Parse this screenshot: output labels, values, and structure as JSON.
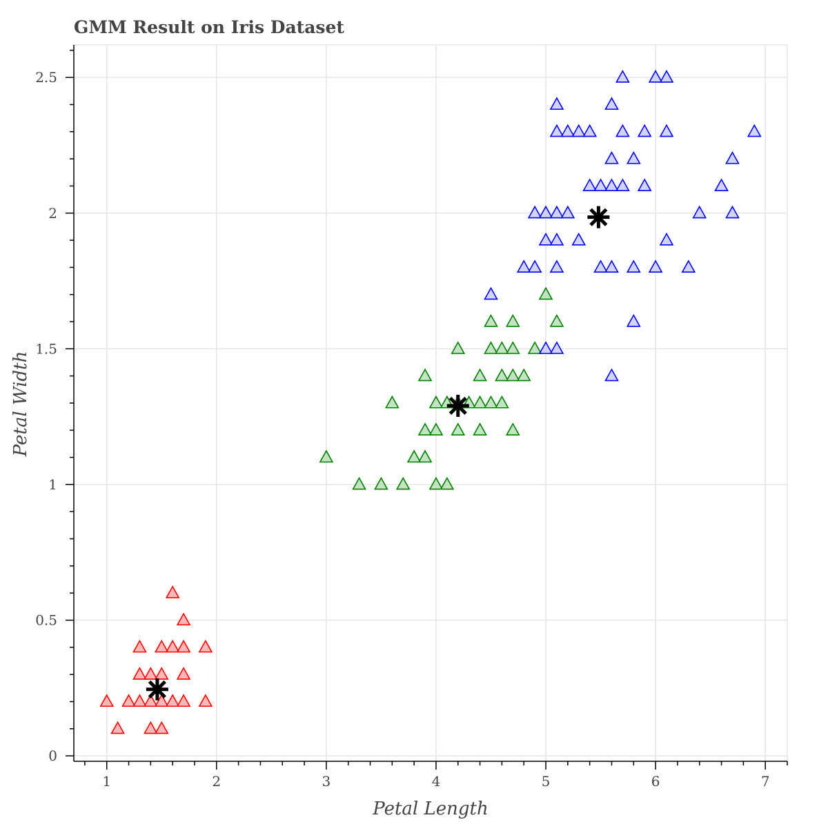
{
  "chart_data": {
    "type": "scatter",
    "title": "GMM Result on Iris Dataset",
    "xlabel": "Petal Length",
    "ylabel": "Petal Width",
    "xlim": [
      0.7,
      7.2
    ],
    "ylim": [
      -0.02,
      2.62
    ],
    "x_ticks": [
      1,
      2,
      3,
      4,
      5,
      6,
      7
    ],
    "y_ticks": [
      0,
      0.5,
      1,
      1.5,
      2,
      2.5
    ],
    "x_tick_labels": [
      "1",
      "2",
      "3",
      "4",
      "5",
      "6",
      "7"
    ],
    "y_tick_labels": [
      "0",
      "0.5",
      "1",
      "1.5",
      "2",
      "2.5"
    ],
    "grid": true,
    "series": [
      {
        "marker": "triangle",
        "color": "#ff0000",
        "fill": "#f4a6a6",
        "points": [
          [
            1.0,
            0.2
          ],
          [
            1.1,
            0.1
          ],
          [
            1.2,
            0.2
          ],
          [
            1.3,
            0.2
          ],
          [
            1.3,
            0.3
          ],
          [
            1.3,
            0.4
          ],
          [
            1.4,
            0.1
          ],
          [
            1.4,
            0.2
          ],
          [
            1.4,
            0.3
          ],
          [
            1.5,
            0.1
          ],
          [
            1.5,
            0.2
          ],
          [
            1.5,
            0.3
          ],
          [
            1.5,
            0.4
          ],
          [
            1.6,
            0.2
          ],
          [
            1.6,
            0.4
          ],
          [
            1.6,
            0.6
          ],
          [
            1.7,
            0.2
          ],
          [
            1.7,
            0.3
          ],
          [
            1.7,
            0.4
          ],
          [
            1.7,
            0.5
          ],
          [
            1.9,
            0.2
          ],
          [
            1.9,
            0.4
          ]
        ]
      },
      {
        "marker": "triangle",
        "color": "#008000",
        "fill": "#b8dcb8",
        "points": [
          [
            3.0,
            1.1
          ],
          [
            3.3,
            1.0
          ],
          [
            3.5,
            1.0
          ],
          [
            3.6,
            1.3
          ],
          [
            3.7,
            1.0
          ],
          [
            3.8,
            1.1
          ],
          [
            3.9,
            1.1
          ],
          [
            3.9,
            1.2
          ],
          [
            3.9,
            1.4
          ],
          [
            4.0,
            1.0
          ],
          [
            4.0,
            1.2
          ],
          [
            4.0,
            1.3
          ],
          [
            4.1,
            1.0
          ],
          [
            4.1,
            1.3
          ],
          [
            4.2,
            1.2
          ],
          [
            4.2,
            1.3
          ],
          [
            4.2,
            1.5
          ],
          [
            4.3,
            1.3
          ],
          [
            4.4,
            1.2
          ],
          [
            4.4,
            1.3
          ],
          [
            4.4,
            1.4
          ],
          [
            4.5,
            1.3
          ],
          [
            4.5,
            1.5
          ],
          [
            4.5,
            1.6
          ],
          [
            4.6,
            1.3
          ],
          [
            4.6,
            1.4
          ],
          [
            4.6,
            1.5
          ],
          [
            4.7,
            1.2
          ],
          [
            4.7,
            1.4
          ],
          [
            4.7,
            1.5
          ],
          [
            4.7,
            1.6
          ],
          [
            4.8,
            1.4
          ],
          [
            4.9,
            1.5
          ],
          [
            5.0,
            1.7
          ],
          [
            5.1,
            1.6
          ]
        ]
      },
      {
        "marker": "triangle",
        "color": "#0000ff",
        "fill": "#c8c8f0",
        "points": [
          [
            4.5,
            1.7
          ],
          [
            4.8,
            1.8
          ],
          [
            4.9,
            1.8
          ],
          [
            4.9,
            2.0
          ],
          [
            5.0,
            1.5
          ],
          [
            5.0,
            1.9
          ],
          [
            5.0,
            2.0
          ],
          [
            5.1,
            1.5
          ],
          [
            5.1,
            1.8
          ],
          [
            5.1,
            1.9
          ],
          [
            5.1,
            2.0
          ],
          [
            5.1,
            2.3
          ],
          [
            5.1,
            2.4
          ],
          [
            5.2,
            2.0
          ],
          [
            5.2,
            2.3
          ],
          [
            5.3,
            1.9
          ],
          [
            5.3,
            2.3
          ],
          [
            5.4,
            2.1
          ],
          [
            5.4,
            2.3
          ],
          [
            5.5,
            1.8
          ],
          [
            5.5,
            2.1
          ],
          [
            5.6,
            1.4
          ],
          [
            5.6,
            1.8
          ],
          [
            5.6,
            2.1
          ],
          [
            5.6,
            2.2
          ],
          [
            5.6,
            2.4
          ],
          [
            5.7,
            2.1
          ],
          [
            5.7,
            2.3
          ],
          [
            5.7,
            2.5
          ],
          [
            5.8,
            1.6
          ],
          [
            5.8,
            1.8
          ],
          [
            5.8,
            2.2
          ],
          [
            5.9,
            2.1
          ],
          [
            5.9,
            2.3
          ],
          [
            6.0,
            1.8
          ],
          [
            6.0,
            2.5
          ],
          [
            6.1,
            1.9
          ],
          [
            6.1,
            2.3
          ],
          [
            6.1,
            2.5
          ],
          [
            6.3,
            1.8
          ],
          [
            6.4,
            2.0
          ],
          [
            6.6,
            2.1
          ],
          [
            6.7,
            2.0
          ],
          [
            6.7,
            2.2
          ],
          [
            6.9,
            2.3
          ]
        ]
      }
    ],
    "centroids": {
      "marker": "asterisk",
      "color": "#000000",
      "points": [
        [
          1.46,
          0.245
        ],
        [
          4.2,
          1.29
        ],
        [
          5.48,
          1.985
        ]
      ]
    }
  }
}
